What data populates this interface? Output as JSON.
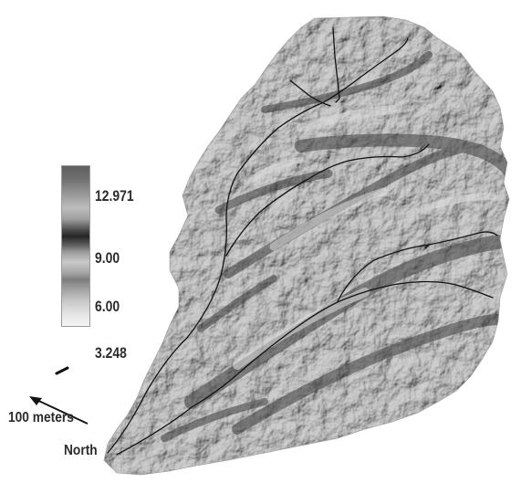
{
  "legend": {
    "labels": [
      "12.971",
      "9.00",
      "6.00",
      "3.248"
    ]
  },
  "scale_bar": {
    "label": "100 meters"
  },
  "north_arrow": {
    "label": "North"
  },
  "colors": {
    "terrain_light": "#c8c8c8",
    "terrain_mid": "#9a9a9a",
    "terrain_dark": "#3a3a3a",
    "stream": "#111111"
  }
}
